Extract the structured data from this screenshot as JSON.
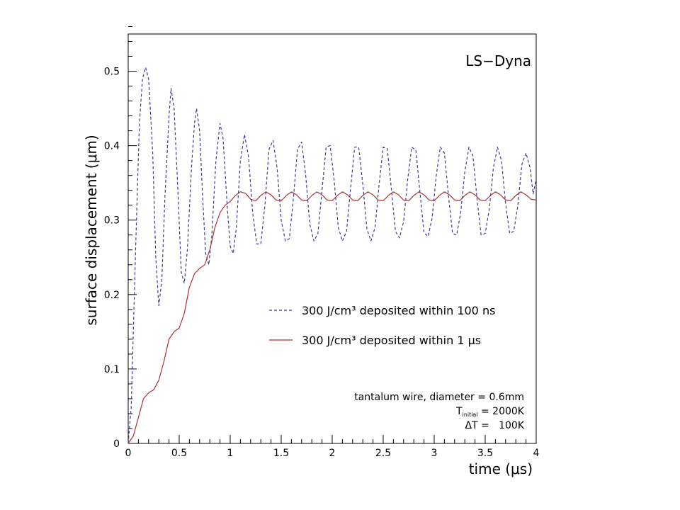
{
  "chart_data": {
    "type": "line",
    "title": "",
    "corner_label": "LS−Dyna",
    "xlabel": "time (μs)",
    "ylabel": "surface displacement (μm)",
    "xlim": [
      0,
      4
    ],
    "ylim": [
      0,
      0.55
    ],
    "xticks": [
      0,
      0.5,
      1,
      1.5,
      2,
      2.5,
      3,
      3.5,
      4
    ],
    "xtick_labels": [
      "0",
      "0.5",
      "1",
      "1.5",
      "2",
      "2.5",
      "3",
      "3.5",
      "4"
    ],
    "yticks": [
      0,
      0.1,
      0.2,
      0.3,
      0.4,
      0.5
    ],
    "ytick_labels": [
      "0",
      "0.1",
      "0.2",
      "0.3",
      "0.4",
      "0.5"
    ],
    "grid": false,
    "legend_position": "center-right",
    "series": [
      {
        "name": "300 J/cm³ deposited within 100 ns",
        "color": "#3a3a9a",
        "style": "dashed",
        "points": [
          [
            0,
            0
          ],
          [
            0.03,
            0.05
          ],
          [
            0.07,
            0.25
          ],
          [
            0.11,
            0.43
          ],
          [
            0.14,
            0.49
          ],
          [
            0.17,
            0.505
          ],
          [
            0.2,
            0.49
          ],
          [
            0.24,
            0.39
          ],
          [
            0.27,
            0.25
          ],
          [
            0.3,
            0.185
          ],
          [
            0.33,
            0.22
          ],
          [
            0.36,
            0.33
          ],
          [
            0.4,
            0.44
          ],
          [
            0.42,
            0.477
          ],
          [
            0.45,
            0.45
          ],
          [
            0.49,
            0.33
          ],
          [
            0.52,
            0.23
          ],
          [
            0.55,
            0.215
          ],
          [
            0.58,
            0.26
          ],
          [
            0.62,
            0.37
          ],
          [
            0.65,
            0.43
          ],
          [
            0.67,
            0.45
          ],
          [
            0.7,
            0.42
          ],
          [
            0.73,
            0.33
          ],
          [
            0.76,
            0.255
          ],
          [
            0.79,
            0.24
          ],
          [
            0.82,
            0.28
          ],
          [
            0.86,
            0.38
          ],
          [
            0.9,
            0.43
          ],
          [
            0.93,
            0.41
          ],
          [
            0.97,
            0.32
          ],
          [
            1.0,
            0.265
          ],
          [
            1.03,
            0.255
          ],
          [
            1.06,
            0.29
          ],
          [
            1.1,
            0.38
          ],
          [
            1.14,
            0.415
          ],
          [
            1.18,
            0.385
          ],
          [
            1.22,
            0.31
          ],
          [
            1.26,
            0.268
          ],
          [
            1.3,
            0.268
          ],
          [
            1.34,
            0.32
          ],
          [
            1.38,
            0.395
          ],
          [
            1.42,
            0.407
          ],
          [
            1.46,
            0.37
          ],
          [
            1.5,
            0.3
          ],
          [
            1.54,
            0.272
          ],
          [
            1.58,
            0.275
          ],
          [
            1.62,
            0.33
          ],
          [
            1.66,
            0.395
          ],
          [
            1.7,
            0.405
          ],
          [
            1.74,
            0.36
          ],
          [
            1.78,
            0.295
          ],
          [
            1.82,
            0.272
          ],
          [
            1.86,
            0.282
          ],
          [
            1.9,
            0.34
          ],
          [
            1.94,
            0.398
          ],
          [
            1.98,
            0.4
          ],
          [
            2.02,
            0.352
          ],
          [
            2.06,
            0.29
          ],
          [
            2.1,
            0.272
          ],
          [
            2.14,
            0.285
          ],
          [
            2.18,
            0.342
          ],
          [
            2.22,
            0.398
          ],
          [
            2.26,
            0.398
          ],
          [
            2.3,
            0.348
          ],
          [
            2.34,
            0.288
          ],
          [
            2.38,
            0.272
          ],
          [
            2.42,
            0.29
          ],
          [
            2.46,
            0.348
          ],
          [
            2.5,
            0.398
          ],
          [
            2.54,
            0.396
          ],
          [
            2.58,
            0.342
          ],
          [
            2.62,
            0.285
          ],
          [
            2.66,
            0.276
          ],
          [
            2.7,
            0.298
          ],
          [
            2.74,
            0.355
          ],
          [
            2.78,
            0.398
          ],
          [
            2.82,
            0.394
          ],
          [
            2.86,
            0.338
          ],
          [
            2.9,
            0.283
          ],
          [
            2.94,
            0.278
          ],
          [
            2.98,
            0.303
          ],
          [
            3.02,
            0.36
          ],
          [
            3.06,
            0.398
          ],
          [
            3.1,
            0.39
          ],
          [
            3.14,
            0.332
          ],
          [
            3.18,
            0.282
          ],
          [
            3.22,
            0.28
          ],
          [
            3.26,
            0.31
          ],
          [
            3.3,
            0.365
          ],
          [
            3.34,
            0.398
          ],
          [
            3.38,
            0.386
          ],
          [
            3.42,
            0.328
          ],
          [
            3.46,
            0.28
          ],
          [
            3.5,
            0.282
          ],
          [
            3.54,
            0.315
          ],
          [
            3.58,
            0.37
          ],
          [
            3.62,
            0.398
          ],
          [
            3.66,
            0.38
          ],
          [
            3.7,
            0.322
          ],
          [
            3.74,
            0.282
          ],
          [
            3.78,
            0.285
          ],
          [
            3.82,
            0.32
          ],
          [
            3.86,
            0.375
          ],
          [
            3.9,
            0.39
          ],
          [
            3.94,
            0.37
          ],
          [
            3.97,
            0.335
          ],
          [
            4.0,
            0.355
          ]
        ]
      },
      {
        "name": "300 J/cm³ deposited within 1 μs",
        "color": "#b03030",
        "style": "solid",
        "points": [
          [
            0,
            0
          ],
          [
            0.05,
            0.01
          ],
          [
            0.1,
            0.035
          ],
          [
            0.15,
            0.06
          ],
          [
            0.2,
            0.068
          ],
          [
            0.25,
            0.072
          ],
          [
            0.3,
            0.085
          ],
          [
            0.35,
            0.11
          ],
          [
            0.4,
            0.14
          ],
          [
            0.45,
            0.15
          ],
          [
            0.5,
            0.155
          ],
          [
            0.55,
            0.175
          ],
          [
            0.6,
            0.21
          ],
          [
            0.65,
            0.228
          ],
          [
            0.7,
            0.235
          ],
          [
            0.75,
            0.24
          ],
          [
            0.8,
            0.26
          ],
          [
            0.85,
            0.29
          ],
          [
            0.9,
            0.31
          ],
          [
            0.95,
            0.32
          ],
          [
            1.0,
            0.325
          ],
          [
            1.05,
            0.333
          ],
          [
            1.1,
            0.338
          ],
          [
            1.15,
            0.336
          ],
          [
            1.2,
            0.328
          ],
          [
            1.25,
            0.326
          ],
          [
            1.3,
            0.333
          ],
          [
            1.35,
            0.338
          ],
          [
            1.4,
            0.334
          ],
          [
            1.45,
            0.327
          ],
          [
            1.5,
            0.326
          ],
          [
            1.55,
            0.333
          ],
          [
            1.6,
            0.338
          ],
          [
            1.65,
            0.334
          ],
          [
            1.7,
            0.327
          ],
          [
            1.75,
            0.326
          ],
          [
            1.8,
            0.333
          ],
          [
            1.85,
            0.338
          ],
          [
            1.9,
            0.334
          ],
          [
            1.95,
            0.327
          ],
          [
            2.0,
            0.326
          ],
          [
            2.05,
            0.333
          ],
          [
            2.1,
            0.338
          ],
          [
            2.15,
            0.334
          ],
          [
            2.2,
            0.327
          ],
          [
            2.25,
            0.326
          ],
          [
            2.3,
            0.333
          ],
          [
            2.35,
            0.338
          ],
          [
            2.4,
            0.334
          ],
          [
            2.45,
            0.327
          ],
          [
            2.5,
            0.326
          ],
          [
            2.55,
            0.333
          ],
          [
            2.6,
            0.338
          ],
          [
            2.65,
            0.334
          ],
          [
            2.7,
            0.327
          ],
          [
            2.75,
            0.326
          ],
          [
            2.8,
            0.333
          ],
          [
            2.85,
            0.338
          ],
          [
            2.9,
            0.334
          ],
          [
            2.95,
            0.327
          ],
          [
            3.0,
            0.326
          ],
          [
            3.05,
            0.333
          ],
          [
            3.1,
            0.338
          ],
          [
            3.15,
            0.334
          ],
          [
            3.2,
            0.327
          ],
          [
            3.25,
            0.326
          ],
          [
            3.3,
            0.333
          ],
          [
            3.35,
            0.338
          ],
          [
            3.4,
            0.334
          ],
          [
            3.45,
            0.327
          ],
          [
            3.5,
            0.326
          ],
          [
            3.55,
            0.333
          ],
          [
            3.6,
            0.338
          ],
          [
            3.65,
            0.334
          ],
          [
            3.7,
            0.327
          ],
          [
            3.75,
            0.326
          ],
          [
            3.8,
            0.333
          ],
          [
            3.85,
            0.338
          ],
          [
            3.9,
            0.334
          ],
          [
            3.95,
            0.328
          ],
          [
            4.0,
            0.327
          ]
        ]
      }
    ],
    "annotations": [
      "tantalum wire, diameter = 0.6mm",
      "T",
      "initial",
      " = 2000K",
      "ΔT =   100K"
    ]
  }
}
